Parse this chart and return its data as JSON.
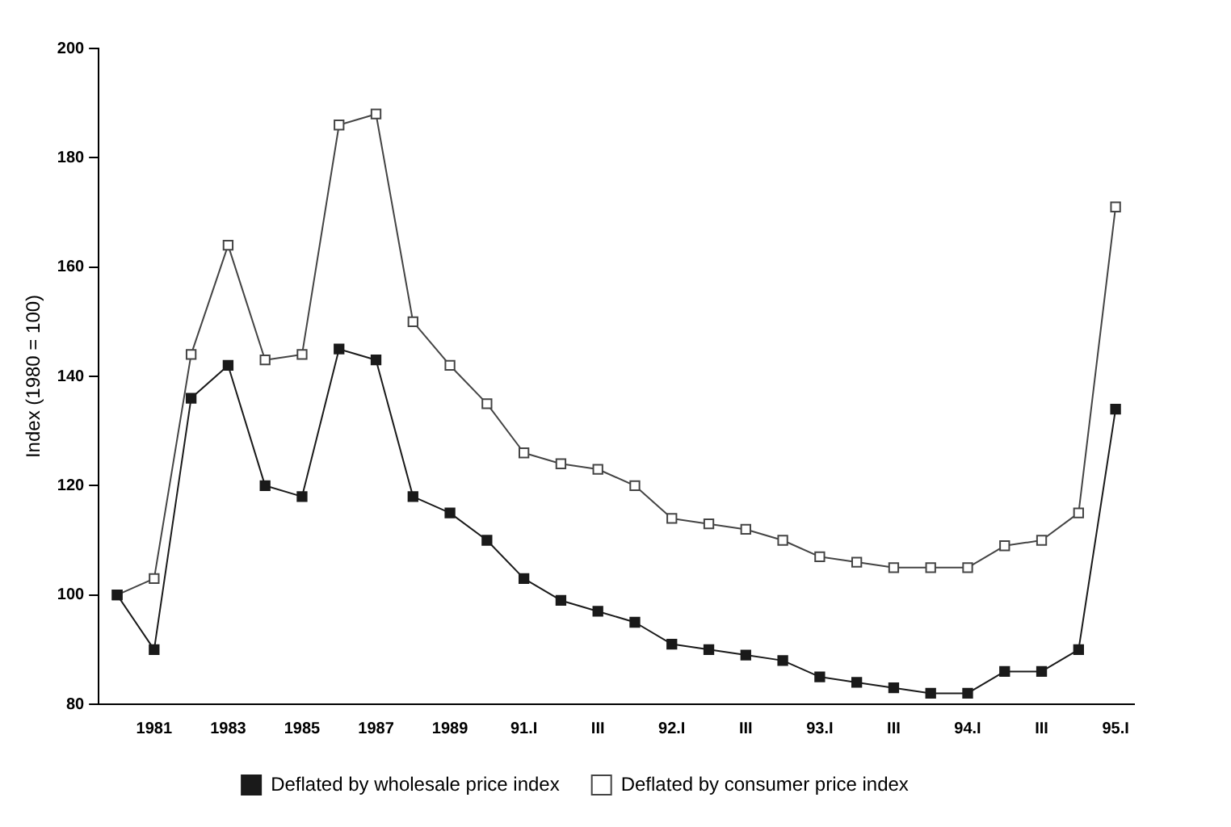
{
  "chart_data": {
    "type": "line",
    "ylabel": "Index (1980 = 100)",
    "categories": [
      null,
      "1981",
      null,
      "1983",
      null,
      "1985",
      null,
      "1987",
      null,
      "1989",
      null,
      "91.I",
      null,
      "III",
      null,
      "92.I",
      null,
      "III",
      null,
      "93.I",
      null,
      "III",
      null,
      "94.I",
      null,
      "III",
      null,
      "95.I"
    ],
    "series": [
      {
        "name": "Deflated by wholesale price index",
        "color": "#1a1a1a",
        "values": [
          100,
          90,
          136,
          142,
          120,
          118,
          145,
          143,
          118,
          115,
          110,
          103,
          99,
          97,
          95,
          91,
          90,
          89,
          88,
          85,
          84,
          83,
          82,
          82,
          86,
          86,
          90,
          134
        ]
      },
      {
        "name": "Deflated by consumer price index",
        "color": "#444444",
        "values": [
          100,
          103,
          144,
          164,
          143,
          144,
          186,
          188,
          150,
          142,
          135,
          126,
          124,
          123,
          120,
          114,
          113,
          112,
          110,
          107,
          106,
          105,
          105,
          105,
          109,
          110,
          115,
          171
        ]
      }
    ],
    "ylim": [
      80,
      200
    ],
    "yticks": [
      80,
      100,
      120,
      140,
      160,
      180,
      200
    ],
    "grid": false,
    "legend": "bottom",
    "marker": "square",
    "line_style": "solid"
  }
}
